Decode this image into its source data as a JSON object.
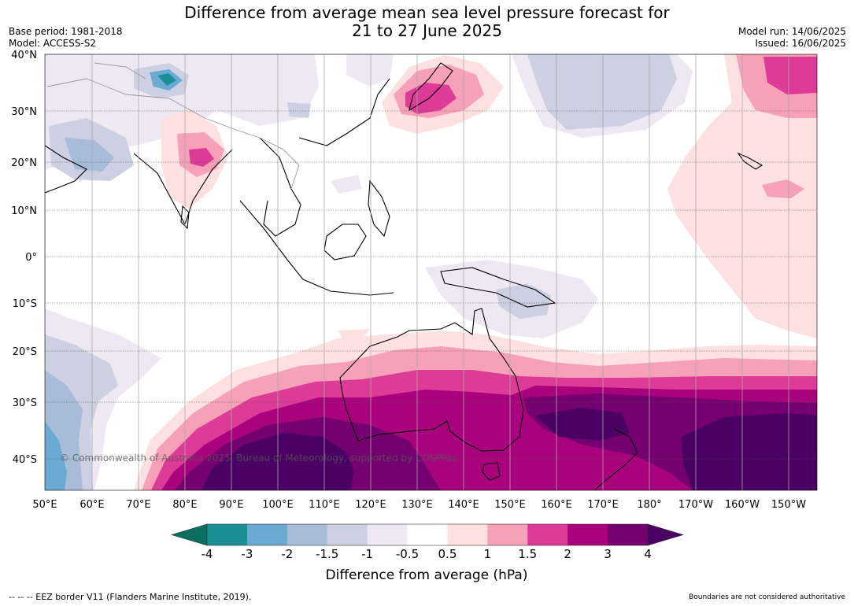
{
  "title_line1": "Difference from average mean sea level pressure forecast for",
  "title_line2": "21 to 27 June 2025",
  "base_period": "Base period: 1981-2018",
  "model": "Model: ACCESS-S2",
  "model_run": "Model run: 14/06/2025",
  "issued": "Issued: 16/06/2025",
  "lat_labels": [
    "40°N",
    "30°N",
    "20°N",
    "10°N",
    "0°",
    "10°S",
    "20°S",
    "30°S",
    "40°S"
  ],
  "lon_labels": [
    "50°E",
    "60°E",
    "70°E",
    "80°E",
    "90°E",
    "100°E",
    "110°E",
    "120°E",
    "130°E",
    "140°E",
    "150°E",
    "160°E",
    "170°E",
    "180°",
    "170°W",
    "160°W",
    "150°W"
  ],
  "colorbar": {
    "title": "Difference from average (hPa)",
    "ticks": [
      "-4",
      "-3",
      "-2",
      "-1.5",
      "-1",
      "-0.5",
      "0.5",
      "1",
      "1.5",
      "2",
      "3",
      "4"
    ],
    "colors": [
      "#0b6e5e",
      "#1a9094",
      "#6aaad3",
      "#a8bcd8",
      "#cdcfe3",
      "#ede8f1",
      "#ffffff",
      "#fde0e0",
      "#f7a1b8",
      "#dc3c97",
      "#a8037d",
      "#75006f",
      "#4b0064"
    ]
  },
  "copyright": "© Commonwealth of Australia 2025, Bureau of Meteorology, supported by COSPPac",
  "footer_left": "-- -- -- EEZ border V11 (Flanders Marine Institute, 2019).",
  "footer_right": "Boundaries are not considered authoritative"
}
